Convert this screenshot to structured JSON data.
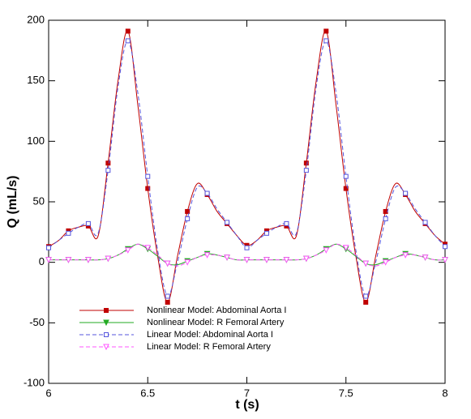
{
  "chart_data": {
    "type": "line",
    "x_label": "t  (s)",
    "y_label": "Q  (mL/s)",
    "xlim": [
      6,
      8
    ],
    "xticks": [
      6,
      6.5,
      7,
      7.5,
      8
    ],
    "ylim": [
      -100,
      200
    ],
    "yticks": [
      -100,
      -50,
      0,
      50,
      100,
      150,
      200
    ],
    "marker_every": 2,
    "x": [
      6,
      6.05,
      6.1,
      6.15,
      6.2,
      6.25,
      6.3,
      6.35,
      6.4,
      6.45,
      6.5,
      6.55,
      6.6,
      6.65,
      6.7,
      6.75,
      6.8,
      6.85,
      6.9,
      6.95,
      7,
      7.05,
      7.1,
      7.15,
      7.2,
      7.25,
      7.3,
      7.35,
      7.4,
      7.45,
      7.5,
      7.55,
      7.6,
      7.65,
      7.7,
      7.75,
      7.8,
      7.85,
      7.9,
      7.95,
      8
    ],
    "series": [
      {
        "name": "Nonlinear Model: Abdominal Aorta I",
        "color": "#c00000",
        "dash": false,
        "marker": "square",
        "filled": true,
        "values": [
          13,
          18,
          26,
          29,
          30,
          22,
          82,
          150,
          191,
          130,
          61,
          5,
          -33,
          5,
          42,
          65,
          56,
          42,
          32,
          22,
          14,
          18,
          26,
          29,
          30,
          22,
          82,
          150,
          191,
          130,
          61,
          5,
          -33,
          5,
          42,
          65,
          56,
          42,
          32,
          22,
          15
        ]
      },
      {
        "name": "Nonlinear Model: R Femoral Artery",
        "color": "#22aa22",
        "dash": false,
        "marker": "triangle-down",
        "filled": true,
        "values": [
          2,
          2,
          2,
          2,
          2,
          2,
          3,
          6,
          11,
          15,
          11,
          5,
          -1,
          -2,
          1,
          4,
          7,
          6,
          4,
          2,
          2,
          2,
          2,
          2,
          2,
          2,
          3,
          6,
          11,
          15,
          11,
          5,
          -1,
          -2,
          1,
          4,
          7,
          6,
          4,
          2,
          2
        ]
      },
      {
        "name": "Linear Model: Abdominal Aorta I",
        "color": "#5555dd",
        "dash": true,
        "marker": "square",
        "filled": false,
        "values": [
          12,
          18,
          24,
          29,
          32,
          24,
          76,
          145,
          183,
          140,
          71,
          10,
          -28,
          0,
          36,
          62,
          57,
          44,
          33,
          22,
          12,
          18,
          24,
          29,
          32,
          24,
          76,
          145,
          183,
          140,
          71,
          10,
          -28,
          0,
          36,
          62,
          57,
          44,
          33,
          22,
          13
        ]
      },
      {
        "name": "Linear Model: R Femoral Artery",
        "color": "#ff55ff",
        "dash": true,
        "marker": "triangle-down",
        "filled": false,
        "values": [
          2,
          2,
          2,
          2,
          2,
          2,
          3,
          6,
          10,
          15,
          12,
          6,
          -1,
          -3,
          0,
          4,
          6,
          6,
          4,
          2,
          2,
          2,
          2,
          2,
          2,
          2,
          3,
          6,
          10,
          15,
          12,
          6,
          -1,
          -3,
          0,
          4,
          6,
          6,
          4,
          2,
          2
        ]
      }
    ]
  }
}
